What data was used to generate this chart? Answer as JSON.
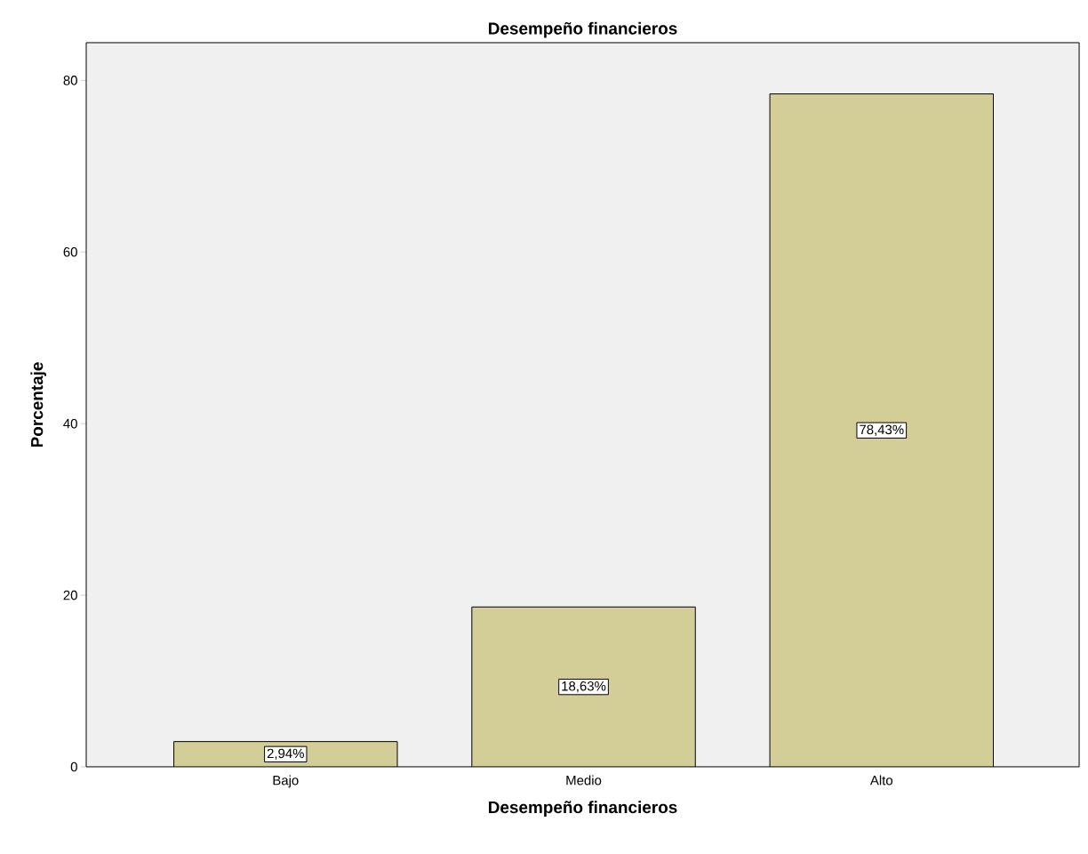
{
  "chart_data": {
    "type": "bar",
    "title": "Desempeño financieros",
    "xlabel": "Desempeño financieros",
    "ylabel": "Porcentaje",
    "categories": [
      "Bajo",
      "Medio",
      "Alto"
    ],
    "values": [
      2.94,
      18.63,
      78.43
    ],
    "value_labels": [
      "2,94%",
      "18,63%",
      "78,43%"
    ],
    "color": "#d3ce97",
    "ylim": [
      0,
      84.4
    ],
    "yticks": [
      0,
      20,
      40,
      60,
      80
    ],
    "grid": false
  }
}
